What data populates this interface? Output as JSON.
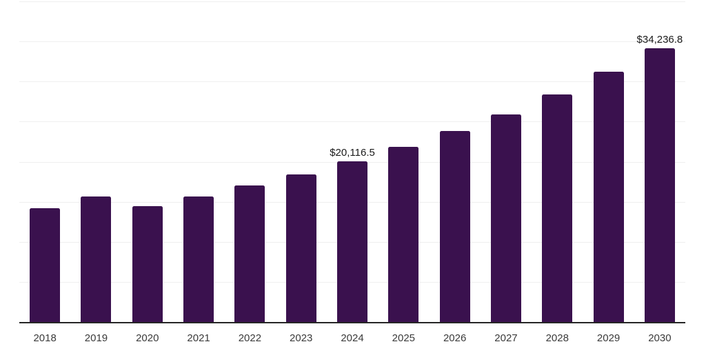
{
  "chart_data": {
    "type": "bar",
    "title": "",
    "xlabel": "",
    "ylabel": "",
    "categories": [
      "2018",
      "2019",
      "2020",
      "2021",
      "2022",
      "2023",
      "2024",
      "2025",
      "2026",
      "2027",
      "2028",
      "2029",
      "2030"
    ],
    "values": [
      14300,
      15740,
      14520,
      15760,
      17100,
      18470,
      20116.5,
      21900,
      23900,
      26000,
      28500,
      31300,
      34236.8
    ],
    "data_labels": {
      "6": "$20,116.5",
      "12": "$34,236.8"
    },
    "ylim": [
      0,
      40000
    ],
    "gridline_step": 5000,
    "grid": true,
    "y_tick_labels_visible": false,
    "legend": false
  },
  "colors": {
    "bar": "#3A114E",
    "gridline": "#EFEFEF",
    "axis": "#262626",
    "value_text": "#1A1A1A",
    "tick_text": "#3A3A3A",
    "background": "#FFFFFF"
  }
}
